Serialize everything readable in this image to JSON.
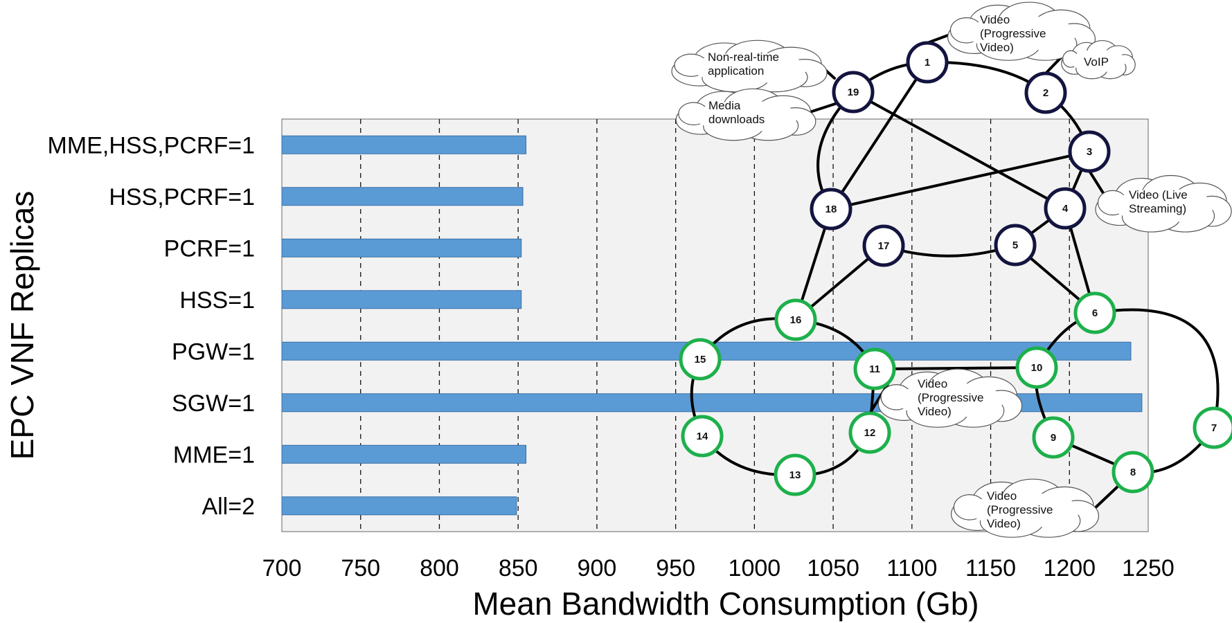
{
  "chart_data": {
    "type": "bar",
    "orientation": "horizontal",
    "xlabel": "Mean Bandwidth Consumption (Gb)",
    "ylabel": "EPC VNF  Replicas",
    "xlim": [
      700,
      1250
    ],
    "xticks": [
      700,
      750,
      800,
      850,
      900,
      950,
      1000,
      1050,
      1100,
      1150,
      1200,
      1250
    ],
    "grid": "vertical-dashed",
    "bar_color": "#5b9bd5",
    "categories": [
      "MME,HSS,PCRF=1",
      "HSS,PCRF=1",
      "PCRF=1",
      "HSS=1",
      "PGW=1",
      "SGW=1",
      "MME=1",
      "All=2"
    ],
    "values": [
      855,
      853,
      852,
      852,
      1239,
      1246,
      855,
      849
    ]
  },
  "topology": {
    "dark_color": "#141440",
    "green_color": "#1db04b",
    "nodes": [
      {
        "id": "1",
        "group": "dark"
      },
      {
        "id": "2",
        "group": "dark"
      },
      {
        "id": "3",
        "group": "dark"
      },
      {
        "id": "4",
        "group": "dark"
      },
      {
        "id": "5",
        "group": "dark"
      },
      {
        "id": "17",
        "group": "dark"
      },
      {
        "id": "18",
        "group": "dark"
      },
      {
        "id": "19",
        "group": "dark"
      },
      {
        "id": "6",
        "group": "green"
      },
      {
        "id": "7",
        "group": "green"
      },
      {
        "id": "8",
        "group": "green"
      },
      {
        "id": "9",
        "group": "green"
      },
      {
        "id": "10",
        "group": "green"
      },
      {
        "id": "11",
        "group": "green"
      },
      {
        "id": "12",
        "group": "green"
      },
      {
        "id": "13",
        "group": "green"
      },
      {
        "id": "14",
        "group": "green"
      },
      {
        "id": "15",
        "group": "green"
      },
      {
        "id": "16",
        "group": "green"
      }
    ],
    "clouds": [
      {
        "key": "video1",
        "lines": [
          "Video",
          "(Progressive",
          "Video)"
        ]
      },
      {
        "key": "voip",
        "lines": [
          "VoIP"
        ]
      },
      {
        "key": "nrt",
        "lines": [
          "Non-real-time",
          "application"
        ]
      },
      {
        "key": "media",
        "lines": [
          "Media",
          "downloads"
        ]
      },
      {
        "key": "live",
        "lines": [
          "Video (Live",
          "Streaming)"
        ]
      },
      {
        "key": "video2",
        "lines": [
          "Video",
          "(Progressive",
          "Video)"
        ]
      },
      {
        "key": "video3",
        "lines": [
          "Video",
          "(Progressive",
          "Video)"
        ]
      }
    ]
  }
}
